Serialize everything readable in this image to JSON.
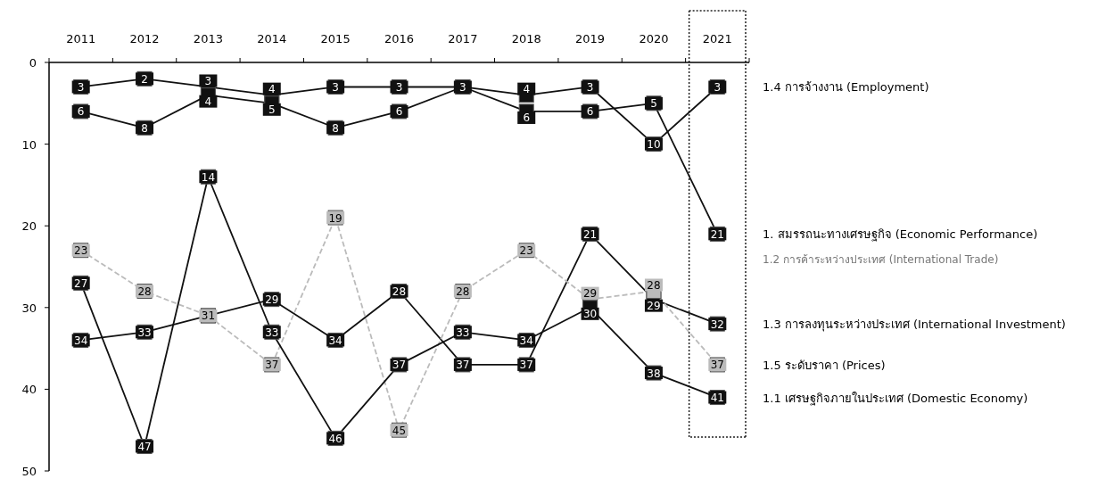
{
  "chart_data": {
    "type": "line",
    "categories": [
      "2011",
      "2012",
      "2013",
      "2014",
      "2015",
      "2016",
      "2017",
      "2018",
      "2019",
      "2020",
      "2021"
    ],
    "ylim": [
      50,
      0
    ],
    "yticks": [
      0,
      10,
      20,
      30,
      40,
      50
    ],
    "grid": false,
    "legend": false,
    "marker": "square",
    "data_labels": true,
    "series": [
      {
        "name": "1.4 การจ้างงาน (Employment)",
        "color": "#111111",
        "values": [
          3,
          2,
          3,
          4,
          3,
          3,
          3,
          4,
          3,
          10,
          3
        ]
      },
      {
        "name": "1. สมรรถนะทางเศรษฐกิจ (Economic Performance)",
        "color": "#111111",
        "values": [
          6,
          8,
          4,
          5,
          8,
          6,
          3,
          6,
          6,
          5,
          21
        ],
        "value_labels": [
          "6",
          "8",
          "4",
          "5",
          "8",
          "6",
          null,
          "6",
          "6",
          "5",
          "21"
        ]
      },
      {
        "name": "1.3 การลงทุนระหว่างประเทศ (International Investment)",
        "color": "#111111",
        "values": [
          34,
          33,
          31,
          29,
          34,
          28,
          37,
          37,
          21,
          29,
          32
        ],
        "value_labels": [
          "34",
          "33",
          null,
          "29",
          "34",
          "28",
          "37",
          "37",
          "21",
          "29",
          "32"
        ]
      },
      {
        "name": "1.5 ระดับราคา (Prices)",
        "color": "#bbbbbb",
        "line_style": "dashed",
        "values": [
          23,
          28,
          31,
          37,
          19,
          45,
          28,
          23,
          29,
          28,
          37
        ]
      },
      {
        "name": "1.1 เศรษฐกิจภายในประเทศ (Domestic Economy)",
        "color": "#111111",
        "values": [
          27,
          47,
          14,
          33,
          46,
          37,
          33,
          34,
          30,
          38,
          41
        ]
      }
    ],
    "annotations": [
      "1.2 การค้าระหว่างประเทศ (International Trade)"
    ]
  }
}
